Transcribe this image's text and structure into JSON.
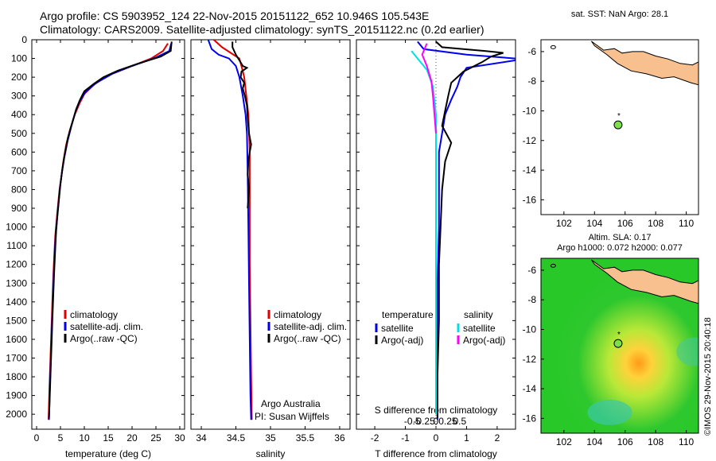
{
  "title_line1": "Argo profile: CS 5903952_124 22-Nov-2015 20151122_652 10.946S 105.543E",
  "title_line2": "Climatology: CARS2009. Satellite-adjusted climatology: synTS_20151122.nc (0.2d earlier)",
  "colors": {
    "clim": "#e00000",
    "sat": "#0000ee",
    "argo": "#000000",
    "cyan": "#00e0e0",
    "magenta": "#ff00ff",
    "land": "#f7c08e",
    "map_bg": "#2ec82e"
  },
  "chart_data": [
    {
      "type": "line",
      "name": "temperature",
      "xlabel": "temperature (deg C)",
      "xlim": [
        -1,
        31
      ],
      "ylim": [
        2080,
        0
      ],
      "xticks": [
        0,
        5,
        10,
        15,
        20,
        25,
        30
      ],
      "yticks": [
        0,
        100,
        200,
        300,
        400,
        500,
        600,
        700,
        800,
        900,
        1000,
        1100,
        1200,
        1300,
        1400,
        1500,
        1600,
        1700,
        1800,
        1900,
        2000
      ],
      "legend": [
        "climatology",
        "satellite-adj. clim.",
        "Argo(..raw -QC)"
      ],
      "series": [
        {
          "name": "climatology",
          "color_key": "clim",
          "points": [
            [
              27.5,
              20
            ],
            [
              26.5,
              60
            ],
            [
              24,
              100
            ],
            [
              20,
              140
            ],
            [
              15,
              190
            ],
            [
              12,
              240
            ],
            [
              10,
              290
            ],
            [
              9,
              340
            ],
            [
              8,
              400
            ],
            [
              7,
              480
            ],
            [
              6.2,
              560
            ],
            [
              5.6,
              650
            ],
            [
              5.2,
              730
            ],
            [
              4.8,
              800
            ],
            [
              4.5,
              880
            ],
            [
              4.2,
              960
            ],
            [
              3.9,
              1050
            ],
            [
              3.7,
              1150
            ],
            [
              3.5,
              1260
            ],
            [
              3.3,
              1400
            ],
            [
              3.1,
              1550
            ],
            [
              2.9,
              1700
            ],
            [
              2.7,
              1850
            ],
            [
              2.5,
              2030
            ]
          ]
        },
        {
          "name": "satellite",
          "color_key": "sat",
          "points": [
            [
              28.2,
              20
            ],
            [
              27.8,
              60
            ],
            [
              25,
              95
            ],
            [
              20,
              140
            ],
            [
              16,
              180
            ],
            [
              12.5,
              230
            ],
            [
              10.2,
              280
            ],
            [
              9,
              330
            ],
            [
              8.2,
              380
            ],
            [
              7.3,
              460
            ],
            [
              6.5,
              540
            ],
            [
              5.8,
              630
            ],
            [
              5.3,
              710
            ],
            [
              4.9,
              790
            ],
            [
              4.6,
              870
            ],
            [
              4.3,
              950
            ],
            [
              4,
              1040
            ],
            [
              3.8,
              1140
            ],
            [
              3.6,
              1250
            ],
            [
              3.4,
              1390
            ],
            [
              3.2,
              1540
            ],
            [
              3,
              1690
            ],
            [
              2.8,
              1840
            ],
            [
              2.6,
              2030
            ]
          ]
        },
        {
          "name": "argo",
          "color_key": "argo",
          "points": [
            [
              28.3,
              10
            ],
            [
              28.1,
              60
            ],
            [
              26,
              90
            ],
            [
              21,
              130
            ],
            [
              17,
              165
            ],
            [
              14,
              200
            ],
            [
              12,
              235
            ],
            [
              10,
              275
            ],
            [
              9.1,
              320
            ],
            [
              8.3,
              370
            ],
            [
              7.5,
              440
            ],
            [
              6.6,
              520
            ],
            [
              5.9,
              610
            ],
            [
              5.4,
              690
            ],
            [
              5,
              770
            ],
            [
              4.7,
              850
            ],
            [
              4.4,
              930
            ],
            [
              4.1,
              1020
            ],
            [
              3.9,
              1120
            ],
            [
              3.7,
              1230
            ],
            [
              3.5,
              1360
            ],
            [
              3.3,
              1500
            ],
            [
              3.1,
              1650
            ],
            [
              2.9,
              1800
            ],
            [
              2.7,
              1950
            ],
            [
              2.6,
              2020
            ]
          ]
        }
      ]
    },
    {
      "type": "line",
      "name": "salinity",
      "xlabel": "salinity",
      "xlim": [
        33.85,
        36.15
      ],
      "ylim": [
        2080,
        0
      ],
      "xticks": [
        34,
        34.5,
        35,
        35.5,
        36
      ],
      "legend": [
        "climatology",
        "satellite-adj. clim.",
        "Argo(..raw -QC)"
      ],
      "annotation": [
        "Argo Australia",
        "PI: Susan Wijffels"
      ],
      "series": [
        {
          "name": "climatology",
          "color_key": "clim",
          "points": [
            [
              34.18,
              0
            ],
            [
              34.3,
              40
            ],
            [
              34.55,
              100
            ],
            [
              34.58,
              140
            ],
            [
              34.62,
              200
            ],
            [
              34.65,
              300
            ],
            [
              34.68,
              400
            ],
            [
              34.7,
              600
            ],
            [
              34.7,
              900
            ],
            [
              34.7,
              1200
            ],
            [
              34.71,
              1500
            ],
            [
              34.72,
              1800
            ],
            [
              34.73,
              2030
            ]
          ]
        },
        {
          "name": "satellite",
          "color_key": "sat",
          "points": [
            [
              34.1,
              0
            ],
            [
              34.15,
              50
            ],
            [
              34.25,
              80
            ],
            [
              34.4,
              100
            ],
            [
              34.5,
              140
            ],
            [
              34.55,
              200
            ],
            [
              34.6,
              300
            ],
            [
              34.64,
              400
            ],
            [
              34.66,
              500
            ],
            [
              34.67,
              700
            ],
            [
              34.68,
              1000
            ],
            [
              34.69,
              1300
            ],
            [
              34.7,
              1600
            ],
            [
              34.71,
              1900
            ],
            [
              34.72,
              2030
            ]
          ]
        },
        {
          "name": "argo",
          "color_key": "argo",
          "points": [
            [
              34.45,
              10
            ],
            [
              34.45,
              40
            ],
            [
              34.5,
              80
            ],
            [
              34.55,
              110
            ],
            [
              34.6,
              140
            ],
            [
              34.66,
              150
            ],
            [
              34.58,
              170
            ],
            [
              34.57,
              200
            ],
            [
              34.62,
              230
            ],
            [
              34.6,
              260
            ],
            [
              34.63,
              300
            ],
            [
              34.66,
              350
            ],
            [
              34.67,
              420
            ],
            [
              34.69,
              500
            ],
            [
              34.72,
              560
            ],
            [
              34.7,
              600
            ],
            [
              34.68,
              650
            ],
            [
              34.67,
              720
            ],
            [
              34.69,
              790
            ],
            [
              34.68,
              850
            ],
            [
              34.67,
              900
            ]
          ]
        }
      ]
    },
    {
      "type": "line",
      "name": "difference",
      "xlabel": "T difference from climatology",
      "xlim": [
        -2.6,
        2.6
      ],
      "ylim": [
        2080,
        0
      ],
      "xticks": [
        -2,
        -1,
        0,
        1,
        2
      ],
      "xticklabels": [
        "-2",
        "-1",
        "0",
        "1",
        "2"
      ],
      "top_axis_label": "S difference from climatology",
      "top_ticks": [
        -0.5,
        -0.25,
        0,
        0.25,
        0.5
      ],
      "top_ticklabels": [
        "-0.5",
        "-0.25",
        "0",
        "0.25",
        "0.5"
      ],
      "legend_left_title": "temperature",
      "legend_right_title": "salinity",
      "legend": [
        "satellite",
        "Argo(-adj)",
        "satellite",
        "Argo(-adj)"
      ],
      "series": [
        {
          "name": "T satellite",
          "color_key": "sat",
          "points": [
            [
              -0.6,
              10
            ],
            [
              -0.4,
              50
            ],
            [
              1,
              80
            ],
            [
              2.6,
              100
            ],
            [
              2.6,
              110
            ],
            [
              1,
              150
            ],
            [
              0.8,
              200
            ],
            [
              0.7,
              250
            ],
            [
              0.5,
              320
            ],
            [
              0.3,
              400
            ],
            [
              0.2,
              500
            ],
            [
              0.1,
              600
            ],
            [
              0.1,
              800
            ],
            [
              0.1,
              1000
            ],
            [
              0.05,
              1300
            ],
            [
              0.05,
              1600
            ],
            [
              0.05,
              2030
            ]
          ]
        },
        {
          "name": "T argo",
          "color_key": "argo",
          "points": [
            [
              0,
              10
            ],
            [
              0.2,
              40
            ],
            [
              1.6,
              60
            ],
            [
              2.2,
              70
            ],
            [
              1.8,
              90
            ],
            [
              1.5,
              120
            ],
            [
              0.9,
              170
            ],
            [
              0.5,
              230
            ],
            [
              0.4,
              300
            ],
            [
              0.3,
              380
            ],
            [
              0.2,
              460
            ],
            [
              0.5,
              550
            ],
            [
              0.3,
              650
            ],
            [
              0.2,
              800
            ],
            [
              0.15,
              1000
            ],
            [
              0.1,
              1200
            ],
            [
              0.1,
              1500
            ],
            [
              0.05,
              1800
            ],
            [
              0.05,
              2020
            ]
          ]
        },
        {
          "name": "S satellite",
          "color_key": "cyan",
          "points": [
            [
              -0.8,
              60
            ],
            [
              -0.6,
              100
            ],
            [
              -0.3,
              160
            ],
            [
              -0.1,
              250
            ],
            [
              0,
              400
            ],
            [
              0,
              700
            ],
            [
              0,
              1100
            ],
            [
              0,
              1500
            ],
            [
              0,
              2000
            ]
          ]
        },
        {
          "name": "S argo",
          "color_key": "magenta",
          "points": [
            [
              -0.3,
              20
            ],
            [
              -0.45,
              80
            ],
            [
              -0.3,
              140
            ],
            [
              -0.15,
              220
            ],
            [
              -0.1,
              300
            ],
            [
              -0.05,
              400
            ],
            [
              0,
              500
            ]
          ]
        }
      ]
    }
  ],
  "map_sst": {
    "title": "sat. SST: NaN Argo: 28.1",
    "xticks": [
      102,
      104,
      106,
      108,
      110
    ],
    "yticks": [
      -6,
      -8,
      -10,
      -12,
      -14,
      -16
    ],
    "float_lon": 105.543,
    "float_lat": -10.946
  },
  "map_sla": {
    "title1": "Altim. SLA: 0.17",
    "title2": "Argo h1000: 0.072 h2000: 0.077",
    "xticks": [
      102,
      104,
      106,
      108,
      110
    ],
    "yticks": [
      -6,
      -8,
      -10,
      -12,
      -14,
      -16
    ],
    "float_lon": 105.543,
    "float_lat": -10.946
  },
  "credit": "©IMOS 29-Nov-2015 20:40:18"
}
